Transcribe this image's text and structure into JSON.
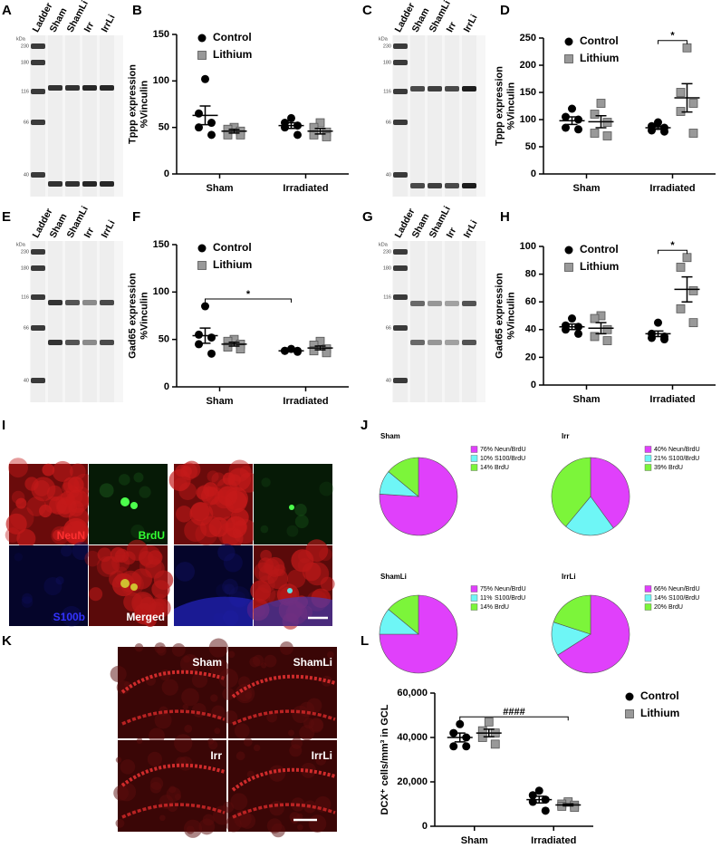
{
  "letters": [
    "A",
    "B",
    "C",
    "D",
    "E",
    "F",
    "G",
    "H",
    "I",
    "J",
    "K",
    "L"
  ],
  "blots": [
    {
      "kda": "kDa",
      "lanes": [
        "Ladder",
        "Sham",
        "ShamLi",
        "Irr",
        "IrrLi"
      ],
      "markers": [
        230,
        180,
        116,
        66,
        40
      ]
    },
    {
      "kda": "kDa",
      "lanes": [
        "Ladder",
        "Sham",
        "ShamLi",
        "Irr",
        "IrrLi"
      ],
      "markers": [
        230,
        180,
        116,
        66,
        40
      ]
    },
    {
      "kda": "kDa",
      "lanes": [
        "Ladder",
        "Sham",
        "ShamLi",
        "Irr",
        "IrrLi"
      ],
      "markers": [
        230,
        180,
        116,
        66,
        40
      ]
    },
    {
      "kda": "kDa",
      "lanes": [
        "Ladder",
        "Sham",
        "ShamLi",
        "Irr",
        "IrrLi"
      ],
      "markers": [
        230,
        180,
        116,
        66,
        40
      ]
    }
  ],
  "cell_images": {
    "labels": [
      "NeuN",
      "BrdU",
      "S100b",
      "Merged"
    ]
  },
  "dcx_images": {
    "labels": [
      "Sham",
      "ShamLi",
      "Irr",
      "IrrLi"
    ]
  },
  "chart_data": [
    {
      "type": "dot",
      "y_label": [
        "Tppp expression",
        "%Vinculin"
      ],
      "categories": [
        "Sham",
        "Irradiated"
      ],
      "series": [
        {
          "name": "Control",
          "marker": "circle",
          "color": "#000000",
          "values": [
            [
              102,
              65,
              55,
              50,
              42
            ],
            [
              60,
              55,
              52,
              50,
              42
            ]
          ],
          "mean": [
            63,
            52
          ],
          "sem": [
            10,
            3
          ]
        },
        {
          "name": "Lithium",
          "marker": "square",
          "color": "#999999",
          "values": [
            [
              50,
              48,
              46,
              42,
              42
            ],
            [
              55,
              50,
              45,
              42,
              40
            ]
          ],
          "mean": [
            46,
            46
          ],
          "sem": [
            2,
            3
          ]
        }
      ],
      "ylim": [
        0,
        150
      ],
      "yticks": [
        0,
        50,
        100,
        150
      ],
      "legend": "upper left"
    },
    {
      "type": "dot",
      "y_label": [
        "Tppp expression",
        "%Vinculin"
      ],
      "categories": [
        "Sham",
        "Irradiated"
      ],
      "series": [
        {
          "name": "Control",
          "marker": "circle",
          "color": "#000000",
          "values": [
            [
              120,
              105,
              100,
              85,
              82
            ],
            [
              95,
              88,
              85,
              80,
              78
            ]
          ],
          "mean": [
            98,
            85
          ],
          "sem": [
            7,
            3
          ]
        },
        {
          "name": "Lithium",
          "marker": "square",
          "color": "#999999",
          "values": [
            [
              130,
              110,
              95,
              75,
              70
            ],
            [
              232,
              150,
              130,
              115,
              75
            ]
          ],
          "mean": [
            96,
            140
          ],
          "sem": [
            11,
            26
          ]
        }
      ],
      "ylim": [
        0,
        250
      ],
      "yticks": [
        0,
        50,
        100,
        150,
        200,
        250
      ],
      "legend": "upper left",
      "annotations": [
        {
          "text": "*",
          "categories": [
            "Irradiated",
            "Irradiated"
          ],
          "series": [
            "Control",
            "Lithium"
          ]
        }
      ]
    },
    {
      "type": "dot",
      "y_label": [
        "Gad65 expression",
        "%Vinculin"
      ],
      "categories": [
        "Sham",
        "Irradiated"
      ],
      "series": [
        {
          "name": "Control",
          "marker": "circle",
          "color": "#000000",
          "values": [
            [
              85,
              55,
              52,
              45,
              35
            ],
            [
              40,
              38,
              38,
              38,
              37
            ]
          ],
          "mean": [
            54,
            38
          ],
          "sem": [
            8,
            1
          ]
        },
        {
          "name": "Lithium",
          "marker": "square",
          "color": "#999999",
          "values": [
            [
              50,
              48,
              45,
              42,
              40
            ],
            [
              48,
              44,
              40,
              38,
              36
            ]
          ],
          "mean": [
            45,
            41
          ],
          "sem": [
            2,
            2
          ]
        }
      ],
      "ylim": [
        0,
        150
      ],
      "yticks": [
        0,
        50,
        100,
        150
      ],
      "legend": "upper left",
      "annotations": [
        {
          "text": "*",
          "categories": [
            "Sham",
            "Irradiated"
          ],
          "series": [
            "Control",
            "Control"
          ]
        }
      ]
    },
    {
      "type": "dot",
      "y_label": [
        "Gad65 expression",
        "%Vinculin"
      ],
      "categories": [
        "Sham",
        "Irradiated"
      ],
      "series": [
        {
          "name": "Control",
          "marker": "circle",
          "color": "#000000",
          "values": [
            [
              48,
              43,
              42,
              40,
              37
            ],
            [
              45,
              37,
              35,
              34,
              33
            ]
          ],
          "mean": [
            42,
            37
          ],
          "sem": [
            2,
            2
          ]
        },
        {
          "name": "Lithium",
          "marker": "square",
          "color": "#999999",
          "values": [
            [
              50,
              48,
              40,
              35,
              32
            ],
            [
              92,
              85,
              68,
              55,
              45
            ]
          ],
          "mean": [
            41,
            69
          ],
          "sem": [
            4,
            9
          ]
        }
      ],
      "ylim": [
        0,
        100
      ],
      "yticks": [
        0,
        20,
        40,
        60,
        80,
        100
      ],
      "legend": "upper left",
      "annotations": [
        {
          "text": "*",
          "categories": [
            "Irradiated",
            "Irradiated"
          ],
          "series": [
            "Control",
            "Lithium"
          ]
        }
      ]
    },
    {
      "type": "pie",
      "title": "Sham",
      "categories": [
        "Neun/BrdU",
        "S100/BrdU",
        "BrdU"
      ],
      "values": [
        76,
        10,
        14
      ],
      "value_labels": [
        "76%",
        "10%",
        "14%"
      ],
      "colors": [
        "#e040fb",
        "#6ef6f6",
        "#7cf53a"
      ]
    },
    {
      "type": "pie",
      "title": "Irr",
      "categories": [
        "Neun/BrdU",
        "S100/BrdU",
        "BrdU"
      ],
      "values": [
        40,
        21,
        39
      ],
      "value_labels": [
        "40%",
        "21%",
        "39%"
      ],
      "colors": [
        "#e040fb",
        "#6ef6f6",
        "#7cf53a"
      ]
    },
    {
      "type": "pie",
      "title": "ShamLi",
      "categories": [
        "Neun/BrdU",
        "S100/BrdU",
        "BrdU"
      ],
      "values": [
        75,
        11,
        14
      ],
      "value_labels": [
        "75%",
        "11%",
        "14%"
      ],
      "colors": [
        "#e040fb",
        "#6ef6f6",
        "#7cf53a"
      ]
    },
    {
      "type": "pie",
      "title": "IrrLi",
      "categories": [
        "Neun/BrdU",
        "S100/BrdU",
        "BrdU"
      ],
      "values": [
        66,
        14,
        20
      ],
      "value_labels": [
        "66%",
        "14%",
        "20%"
      ],
      "colors": [
        "#e040fb",
        "#6ef6f6",
        "#7cf53a"
      ]
    },
    {
      "type": "dot",
      "y_label": [
        "DCX⁺ cells/mm³ in GCL"
      ],
      "categories": [
        "Sham",
        "Irradiated"
      ],
      "series": [
        {
          "name": "Control",
          "marker": "circle",
          "color": "#000000",
          "values": [
            [
              46000,
              42000,
              40000,
              36000,
              36000
            ],
            [
              16000,
              14000,
              12000,
              11000,
              7000
            ]
          ],
          "mean": [
            40000,
            12000
          ],
          "sem": [
            2000,
            1500
          ]
        },
        {
          "name": "Lithium",
          "marker": "square",
          "color": "#999999",
          "values": [
            [
              47000,
              43000,
              42000,
              40000,
              37000
            ],
            [
              11000,
              10000,
              9500,
              9000,
              8500
            ]
          ],
          "mean": [
            42000,
            9600
          ],
          "sem": [
            1700,
            430
          ]
        }
      ],
      "ylim": [
        0,
        60000
      ],
      "yticks": [
        0,
        {
          "value": 20000,
          "label": "20,000"
        },
        {
          "value": 40000,
          "label": "40,000"
        },
        {
          "value": 60000,
          "label": "60,000"
        }
      ],
      "legend": "upper right",
      "annotations": [
        {
          "text": "####",
          "categories": [
            "Sham",
            "Irradiated"
          ],
          "series": [
            "Control",
            "Lithium"
          ]
        }
      ]
    }
  ]
}
